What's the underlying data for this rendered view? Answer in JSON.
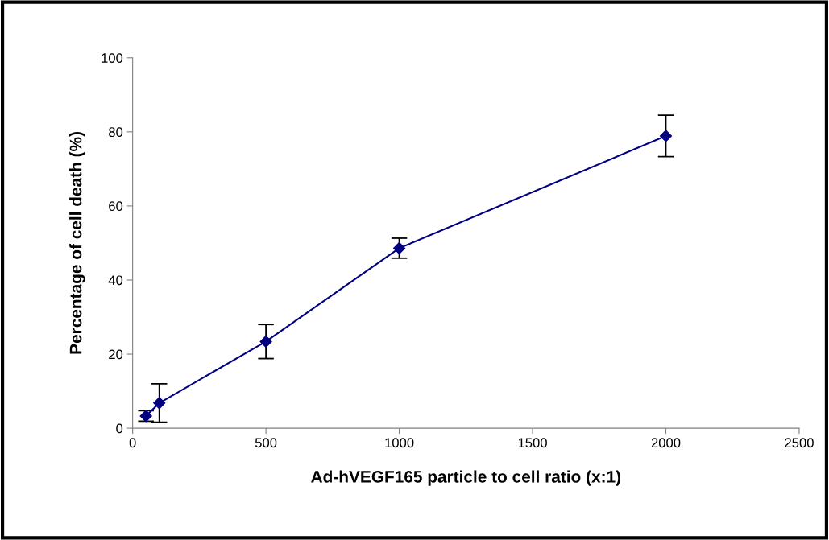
{
  "chart_data": {
    "type": "line",
    "xlabel": "Ad-hVEGF165 particle to cell ratio (x:1)",
    "ylabel": "Percentage of cell death (%)",
    "x": [
      50,
      100,
      500,
      1000,
      2000
    ],
    "series": [
      {
        "color": "#000080",
        "values": [
          3.3,
          6.8,
          23.4,
          48.6,
          78.9
        ],
        "errors": [
          1.4,
          5.2,
          4.6,
          2.7,
          5.6
        ]
      }
    ],
    "xlim": [
      0,
      2500
    ],
    "xticks": [
      0,
      500,
      1000,
      1500,
      2000,
      2500
    ],
    "ylim": [
      0,
      100
    ],
    "yticks": [
      0,
      20,
      40,
      60,
      80,
      100
    ],
    "grid": false,
    "legend": false,
    "marker": "diamond",
    "line_style": "solid"
  }
}
